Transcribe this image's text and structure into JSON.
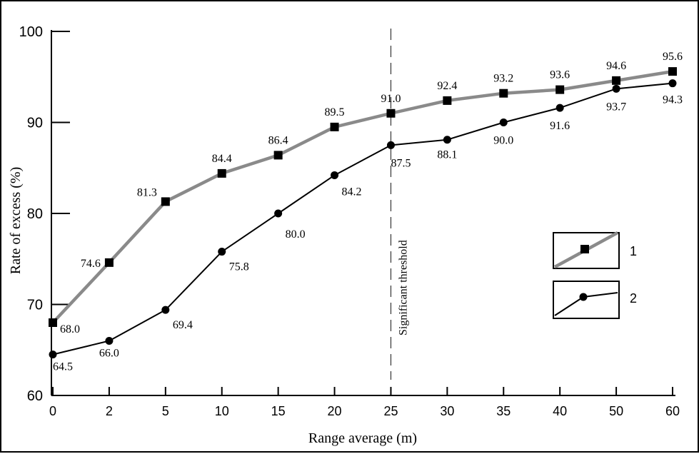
{
  "chart_data": {
    "type": "line",
    "xlabel": "Range average (m)",
    "ylabel": "Rate of excess (%)",
    "ylim": [
      60,
      100
    ],
    "yticks": [
      "60",
      "70",
      "80",
      "90",
      "100"
    ],
    "categories": [
      "0",
      "2",
      "5",
      "10",
      "15",
      "20",
      "25",
      "30",
      "35",
      "40",
      "50",
      "60"
    ],
    "series": [
      {
        "name": "1",
        "color": "#8a8a8a",
        "marker": "square",
        "values": [
          68.0,
          74.6,
          81.3,
          84.4,
          86.4,
          89.5,
          91.0,
          92.4,
          93.2,
          93.6,
          94.6,
          95.6
        ],
        "labels": [
          "68.0",
          "74.6",
          "81.3",
          "84.4",
          "86.4",
          "89.5",
          "91.0",
          "92.4",
          "93.2",
          "93.6",
          "94.6",
          "95.6"
        ]
      },
      {
        "name": "2",
        "color": "#000000",
        "marker": "circle",
        "values": [
          64.5,
          66.0,
          69.4,
          75.8,
          80.0,
          84.2,
          87.5,
          88.1,
          90.0,
          91.6,
          93.7,
          94.3
        ],
        "labels": [
          "64.5",
          "66.0",
          "69.4",
          "75.8",
          "80.0",
          "84.2",
          "87.5",
          "88.1",
          "90.0",
          "91.6",
          "93.7",
          "94.3"
        ]
      }
    ],
    "annotations": [
      {
        "text": "Significant threshold",
        "x_category": "25",
        "style": "dashed-vertical-line"
      }
    ],
    "grid": false,
    "legend_position": "right"
  }
}
